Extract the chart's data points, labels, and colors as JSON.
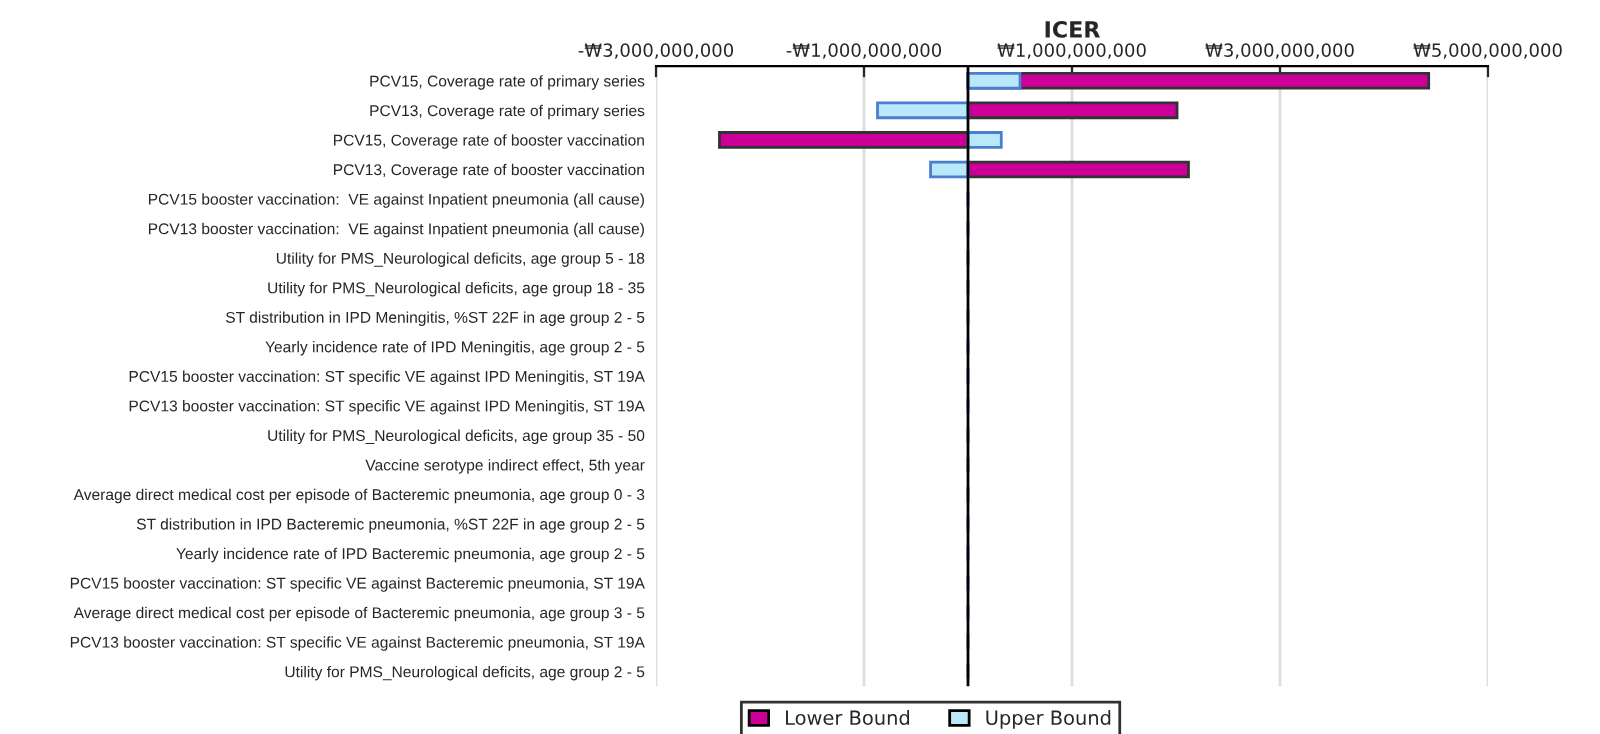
{
  "chart_data": {
    "type": "bar",
    "orientation": "horizontal",
    "xlabel": "ICER",
    "categories": [
      "PCV15, Coverage rate of primary series",
      "PCV13, Coverage rate of primary series",
      "PCV15, Coverage rate of booster vaccination",
      "PCV13, Coverage rate of booster vaccination",
      "PCV15 booster vaccination:  VE against Inpatient pneumonia (all cause)",
      "PCV13 booster vaccination:  VE against Inpatient pneumonia (all cause)",
      "Utility for PMS_Neurological deficits, age group 5 - 18",
      "Utility for PMS_Neurological deficits, age group 18 - 35",
      "ST distribution in IPD Meningitis, %ST 22F in age group 2 - 5",
      "Yearly incidence rate of IPD Meningitis, age group 2 - 5",
      "PCV15 booster vaccination: ST specific VE against IPD Meningitis, ST 19A",
      "PCV13 booster vaccination: ST specific VE against IPD Meningitis, ST 19A",
      "Utility for PMS_Neurological deficits, age group 35 - 50",
      "Vaccine serotype indirect effect, 5th year",
      "Average direct medical cost per episode of Bacteremic pneumonia, age group 0 - 3",
      "ST distribution in IPD Bacteremic pneumonia, %ST 22F in age group 2 - 5",
      "Yearly incidence rate of IPD Bacteremic pneumonia, age group 2 - 5",
      "PCV15 booster vaccination: ST specific VE against Bacteremic pneumonia, ST 19A",
      "Average direct medical cost per episode of Bacteremic pneumonia, age group 3 - 5",
      "PCV13 booster vaccination: ST specific VE against Bacteremic pneumonia, ST 19A",
      "Utility for PMS_Neurological deficits, age group 2 - 5"
    ],
    "series": [
      {
        "name": "Lower Bound",
        "color": "#cc0099",
        "values": [
          4430000000,
          2010000000,
          -2390000000,
          2120000000,
          0,
          0,
          0,
          0,
          0,
          0,
          0,
          0,
          0,
          0,
          0,
          0,
          0,
          0,
          0,
          0,
          0
        ]
      },
      {
        "name": "Upper Bound",
        "color": "#b8e8fa",
        "values": [
          500000000,
          -870000000,
          320000000,
          -360000000,
          0,
          0,
          0,
          0,
          0,
          0,
          0,
          0,
          0,
          0,
          0,
          0,
          0,
          0,
          0,
          0,
          0
        ]
      }
    ],
    "xlim": [
      -3000000000,
      5000000000
    ],
    "xticks": [
      {
        "value": -3000000000,
        "label": "-₩3,000,000,000"
      },
      {
        "value": -1000000000,
        "label": "-₩1,000,000,000"
      },
      {
        "value": 1000000000,
        "label": "₩1,000,000,000"
      },
      {
        "value": 3000000000,
        "label": "₩3,000,000,000"
      },
      {
        "value": 5000000000,
        "label": "₩5,000,000,000"
      }
    ],
    "ref_lines": [
      {
        "axis": "x",
        "value": 0,
        "label": null,
        "color": "#000000"
      }
    ],
    "grid": "x",
    "legend": "bottom"
  }
}
